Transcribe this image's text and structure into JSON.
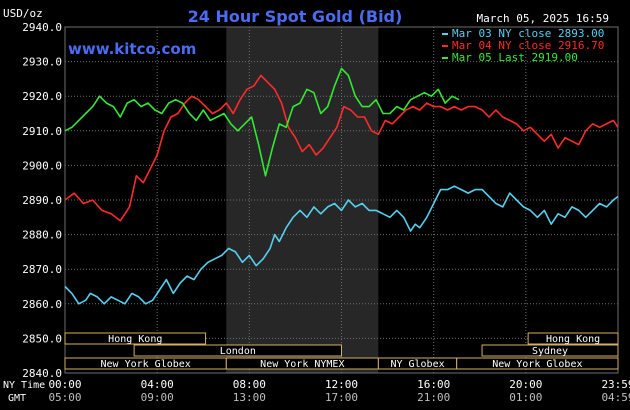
{
  "header": {
    "y_unit": "USD/oz",
    "title": "24 Hour Spot Gold (Bid)",
    "date": "March 05, 2025 16:59",
    "site": "www.kitco.com"
  },
  "legend": [
    {
      "label": "Mar 03 NY close 2893.00",
      "color": "#55d0f0"
    },
    {
      "label": "Mar 04 NY close 2916.70",
      "color": "#ff2a2a"
    },
    {
      "label": "Mar 05 Last 2919.00",
      "color": "#33e833"
    }
  ],
  "x_rows": {
    "ny_label": "NY Time",
    "gmt_label": "GMT",
    "ny_ticks": [
      "00:00",
      "04:00",
      "08:00",
      "12:00",
      "16:00",
      "20:00",
      "23:59"
    ],
    "gmt_ticks": [
      "05:00",
      "09:00",
      "13:00",
      "17:00",
      "21:00",
      "01:00",
      "04:59"
    ]
  },
  "sessions": [
    {
      "label": "Hong Kong",
      "row": 0,
      "from": 0,
      "to": 6.1
    },
    {
      "label": "Hong Kong",
      "row": 0,
      "from": 20.1,
      "to": 24
    },
    {
      "label": "London",
      "row": 1,
      "from": 3,
      "to": 12
    },
    {
      "label": "Sydney",
      "row": 1,
      "from": 18.1,
      "to": 24
    },
    {
      "label": "New York Globex",
      "row": 2,
      "from": 0,
      "to": 7
    },
    {
      "label": "New York NYMEX",
      "row": 2,
      "from": 7,
      "to": 13.6
    },
    {
      "label": "NY Globex",
      "row": 2,
      "from": 13.6,
      "to": 17
    },
    {
      "label": "New York Globex",
      "row": 2,
      "from": 17,
      "to": 24
    }
  ],
  "colors": {
    "background": "#000000",
    "plot_bg": "#000000",
    "nymex_shade": "#272727",
    "grid": "#6e6e6e",
    "axis_text": "#ffffff",
    "title": "#4b6cf2",
    "site": "#4b6cf2",
    "session_border": "#d4b060",
    "session_text": "#ffffff"
  },
  "chart_data": {
    "type": "line",
    "title": "24 Hour Spot Gold (Bid)",
    "ylabel": "USD/oz",
    "xlabel": "",
    "x_unit": "hours (NY time)",
    "xlim": [
      0,
      24
    ],
    "ylim": [
      2840,
      2940
    ],
    "yticks": [
      2840,
      2850,
      2860,
      2870,
      2880,
      2890,
      2900,
      2910,
      2920,
      2930,
      2940
    ],
    "ytick_labels": [
      "2840.0",
      "2850.0",
      "2860.0",
      "2870.0",
      "2880.0",
      "2890.0",
      "2900.0",
      "2910.0",
      "2920.0",
      "2930.0",
      "2940.0"
    ],
    "grid": true,
    "shaded_interval": [
      7,
      13.6
    ],
    "legend_position": "top-right",
    "series": [
      {
        "name": "Mar 03 NY close 2893.00",
        "color": "#55d0f0",
        "x": [
          0,
          0.3,
          0.6,
          0.9,
          1.1,
          1.4,
          1.7,
          2.0,
          2.3,
          2.6,
          2.9,
          3.2,
          3.5,
          3.8,
          4.1,
          4.4,
          4.7,
          5.0,
          5.3,
          5.6,
          5.9,
          6.2,
          6.5,
          6.8,
          7.1,
          7.4,
          7.7,
          8.0,
          8.3,
          8.6,
          8.9,
          9.1,
          9.3,
          9.6,
          9.9,
          10.2,
          10.5,
          10.8,
          11.1,
          11.4,
          11.7,
          12.0,
          12.3,
          12.6,
          12.9,
          13.2,
          13.5,
          13.8,
          14.1,
          14.4,
          14.7,
          15.0,
          15.2,
          15.4,
          15.7,
          16.0,
          16.3,
          16.6,
          16.9,
          17.2,
          17.5,
          17.8,
          18.1,
          18.4,
          18.7,
          19.0,
          19.3,
          19.6,
          19.9,
          20.2,
          20.5,
          20.8,
          21.1,
          21.4,
          21.7,
          22.0,
          22.3,
          22.6,
          22.9,
          23.2,
          23.5,
          23.8,
          24.0
        ],
        "values": [
          2865,
          2863,
          2860,
          2861,
          2863,
          2862,
          2860,
          2862,
          2861,
          2860,
          2863,
          2862,
          2860,
          2861,
          2864,
          2867,
          2863,
          2866,
          2868,
          2867,
          2870,
          2872,
          2873,
          2874,
          2876,
          2875,
          2872,
          2874,
          2871,
          2873,
          2876,
          2880,
          2878,
          2882,
          2885,
          2887,
          2885,
          2888,
          2886,
          2888,
          2889,
          2887,
          2890,
          2888,
          2889,
          2887,
          2887,
          2886,
          2885,
          2887,
          2885,
          2881,
          2883,
          2882,
          2885,
          2889,
          2893,
          2893,
          2894,
          2893,
          2892,
          2893,
          2893,
          2891,
          2889,
          2888,
          2892,
          2890,
          2888,
          2887,
          2885,
          2887,
          2883,
          2886,
          2885,
          2888,
          2887,
          2885,
          2887,
          2889,
          2888,
          2890,
          2891
        ]
      },
      {
        "name": "Mar 04 NY close 2916.70",
        "color": "#ff2a2a",
        "x": [
          0,
          0.4,
          0.8,
          1.2,
          1.6,
          2.0,
          2.4,
          2.8,
          3.1,
          3.4,
          3.7,
          4.0,
          4.3,
          4.6,
          4.9,
          5.2,
          5.5,
          5.8,
          6.1,
          6.4,
          6.7,
          7.0,
          7.3,
          7.6,
          7.9,
          8.2,
          8.5,
          8.8,
          9.1,
          9.4,
          9.7,
          10.0,
          10.3,
          10.6,
          10.9,
          11.2,
          11.5,
          11.8,
          12.1,
          12.4,
          12.7,
          13.0,
          13.3,
          13.6,
          13.9,
          14.2,
          14.5,
          14.8,
          15.1,
          15.4,
          15.7,
          16.0,
          16.3,
          16.6,
          16.9,
          17.2,
          17.5,
          17.8,
          18.1,
          18.4,
          18.7,
          19.0,
          19.3,
          19.6,
          19.9,
          20.2,
          20.5,
          20.8,
          21.1,
          21.4,
          21.7,
          22.0,
          22.3,
          22.6,
          22.9,
          23.2,
          23.5,
          23.8,
          24.0
        ],
        "values": [
          2890,
          2892,
          2889,
          2890,
          2887,
          2886,
          2884,
          2888,
          2897,
          2895,
          2899,
          2903,
          2910,
          2914,
          2915,
          2918,
          2920,
          2919,
          2917,
          2915,
          2916,
          2918,
          2915,
          2919,
          2922,
          2923,
          2926,
          2924,
          2922,
          2918,
          2911,
          2908,
          2904,
          2906,
          2903,
          2905,
          2908,
          2911,
          2917,
          2916,
          2914,
          2914,
          2910,
          2909,
          2913,
          2912,
          2914,
          2916,
          2917,
          2916,
          2918,
          2917,
          2917,
          2916,
          2917,
          2916,
          2917,
          2917,
          2916,
          2914,
          2916,
          2914,
          2913,
          2912,
          2910,
          2911,
          2909,
          2907,
          2909,
          2905,
          2908,
          2907,
          2906,
          2910,
          2912,
          2911,
          2912,
          2913,
          2911
        ]
      },
      {
        "name": "Mar 05 Last 2919.00",
        "color": "#33e833",
        "x": [
          0,
          0.3,
          0.6,
          0.9,
          1.2,
          1.5,
          1.8,
          2.1,
          2.4,
          2.7,
          3.0,
          3.3,
          3.6,
          3.9,
          4.2,
          4.5,
          4.8,
          5.1,
          5.4,
          5.7,
          6.0,
          6.3,
          6.6,
          6.9,
          7.2,
          7.5,
          7.8,
          8.1,
          8.4,
          8.7,
          9.0,
          9.3,
          9.6,
          9.9,
          10.2,
          10.5,
          10.8,
          11.1,
          11.4,
          11.7,
          12.0,
          12.3,
          12.6,
          12.9,
          13.2,
          13.5,
          13.8,
          14.1,
          14.4,
          14.7,
          15.0,
          15.3,
          15.6,
          15.9,
          16.2,
          16.5,
          16.8,
          17.1
        ],
        "values": [
          2910,
          2911,
          2913,
          2915,
          2917,
          2920,
          2918,
          2917,
          2914,
          2918,
          2919,
          2917,
          2918,
          2916,
          2915,
          2918,
          2919,
          2918,
          2915,
          2913,
          2916,
          2913,
          2914,
          2915,
          2912,
          2910,
          2912,
          2914,
          2906,
          2897,
          2905,
          2912,
          2911,
          2917,
          2918,
          2922,
          2921,
          2915,
          2917,
          2923,
          2928,
          2926,
          2920,
          2917,
          2917,
          2919,
          2915,
          2915,
          2917,
          2916,
          2919,
          2920,
          2921,
          2920,
          2922,
          2918,
          2920,
          2919
        ]
      }
    ]
  }
}
